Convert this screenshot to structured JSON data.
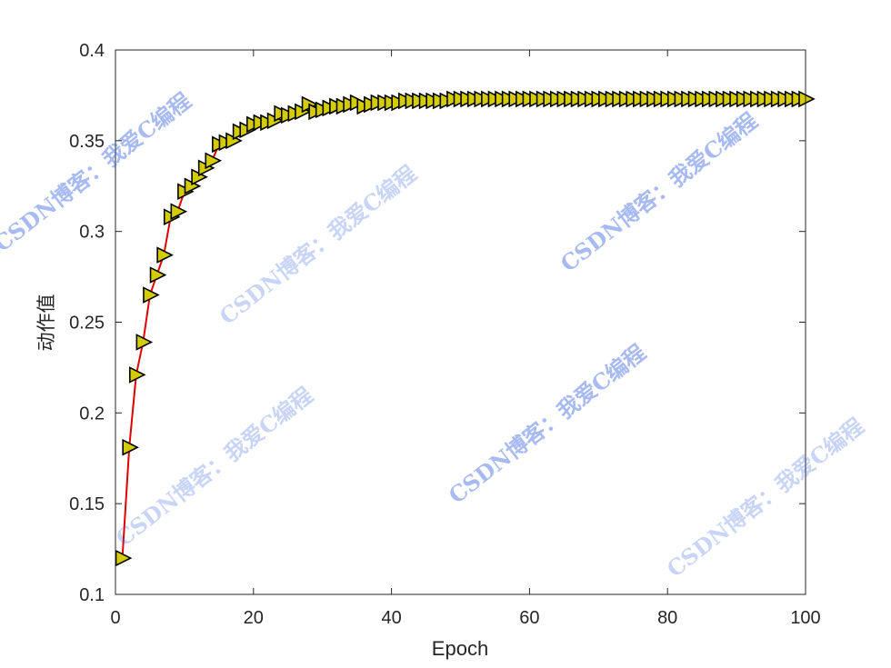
{
  "chart_data": {
    "type": "line",
    "title": "",
    "xlabel": "Epoch",
    "ylabel": "动作值",
    "xlim": [
      0,
      100
    ],
    "ylim": [
      0.1,
      0.4
    ],
    "xticks": [
      "0",
      "20",
      "40",
      "60",
      "80",
      "100"
    ],
    "yticks": [
      "0.1",
      "0.15",
      "0.2",
      "0.25",
      "0.3",
      "0.35",
      "0.4"
    ],
    "grid": false,
    "line_color": "#e00000",
    "marker": "triangle-right",
    "marker_fill": "#d4cc00",
    "marker_edge": "#000000",
    "x": [
      1,
      2,
      3,
      4,
      5,
      6,
      7,
      8,
      9,
      10,
      11,
      12,
      13,
      14,
      15,
      16,
      17,
      18,
      19,
      20,
      21,
      22,
      23,
      24,
      25,
      26,
      27,
      28,
      29,
      30,
      31,
      32,
      33,
      34,
      35,
      36,
      37,
      38,
      39,
      40,
      41,
      42,
      43,
      44,
      45,
      46,
      47,
      48,
      49,
      50,
      51,
      52,
      53,
      54,
      55,
      56,
      57,
      58,
      59,
      60,
      61,
      62,
      63,
      64,
      65,
      66,
      67,
      68,
      69,
      70,
      71,
      72,
      73,
      74,
      75,
      76,
      77,
      78,
      79,
      80,
      81,
      82,
      83,
      84,
      85,
      86,
      87,
      88,
      89,
      90,
      91,
      92,
      93,
      94,
      95,
      96,
      97,
      98,
      99,
      100
    ],
    "y": [
      0.12,
      0.181,
      0.221,
      0.239,
      0.265,
      0.276,
      0.287,
      0.308,
      0.311,
      0.322,
      0.325,
      0.33,
      0.335,
      0.339,
      0.348,
      0.349,
      0.35,
      0.355,
      0.356,
      0.359,
      0.36,
      0.36,
      0.361,
      0.365,
      0.364,
      0.365,
      0.366,
      0.37,
      0.366,
      0.367,
      0.368,
      0.369,
      0.369,
      0.37,
      0.371,
      0.369,
      0.37,
      0.371,
      0.371,
      0.371,
      0.371,
      0.372,
      0.372,
      0.372,
      0.372,
      0.372,
      0.372,
      0.372,
      0.373,
      0.373,
      0.373,
      0.373,
      0.373,
      0.373,
      0.373,
      0.373,
      0.373,
      0.373,
      0.373,
      0.373,
      0.373,
      0.373,
      0.373,
      0.373,
      0.373,
      0.373,
      0.373,
      0.373,
      0.373,
      0.373,
      0.373,
      0.373,
      0.373,
      0.373,
      0.373,
      0.373,
      0.373,
      0.373,
      0.373,
      0.373,
      0.373,
      0.373,
      0.373,
      0.373,
      0.373,
      0.373,
      0.373,
      0.373,
      0.373,
      0.373,
      0.373,
      0.373,
      0.373,
      0.373,
      0.373,
      0.373,
      0.373,
      0.373,
      0.373,
      0.373
    ]
  },
  "watermark": {
    "text": "CSDN博客：我爱C编程",
    "color": "#2e5be0"
  }
}
